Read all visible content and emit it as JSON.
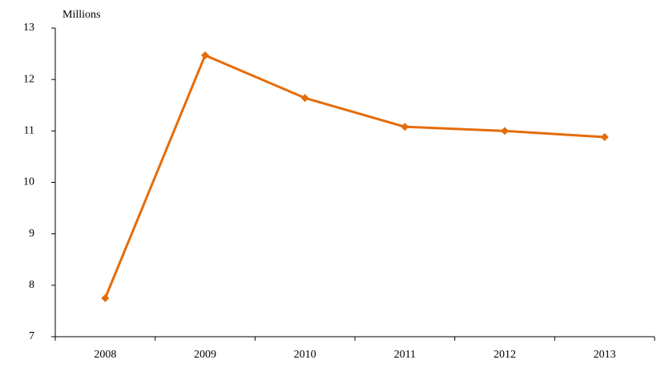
{
  "chart_data": {
    "type": "line",
    "y_label": "Millions",
    "categories": [
      "2008",
      "2009",
      "2010",
      "2011",
      "2012",
      "2013"
    ],
    "values": [
      7.75,
      12.47,
      11.64,
      11.08,
      11.0,
      10.88
    ],
    "color": "#e46c0a",
    "ylim": [
      7,
      13
    ],
    "yticks": [
      7,
      8,
      9,
      10,
      11,
      12,
      13
    ],
    "grid": false
  }
}
